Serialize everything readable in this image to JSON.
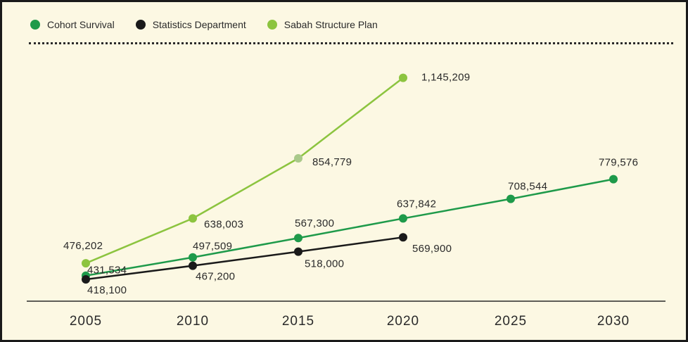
{
  "chart_data": {
    "type": "line",
    "x": [
      "2005",
      "2010",
      "2015",
      "2020",
      "2025",
      "2030"
    ],
    "series": [
      {
        "name": "Cohort Survival",
        "color": "#1e9a4a",
        "values": [
          431534,
          497509,
          567300,
          637842,
          708544,
          779576
        ],
        "labels": [
          "431,534",
          "497,509",
          "567,300",
          "637,842",
          "708,544",
          "779,576"
        ]
      },
      {
        "name": "Statistics Department",
        "color": "#1a1a1a",
        "values": [
          418100,
          467200,
          518000,
          569900,
          null,
          null
        ],
        "labels": [
          "418,100",
          "467,200",
          "518,000",
          "569,900",
          null,
          null
        ]
      },
      {
        "name": "Sabah Structure Plan",
        "color": "#8cc43f",
        "values": [
          476202,
          638003,
          854779,
          1145209,
          null,
          null
        ],
        "labels": [
          "476,202",
          "638,003",
          "854,779",
          "1,145,209",
          null,
          null
        ]
      }
    ],
    "ylim": [
      380000,
      1200000
    ],
    "grid": false,
    "legend_position": "top-left"
  }
}
